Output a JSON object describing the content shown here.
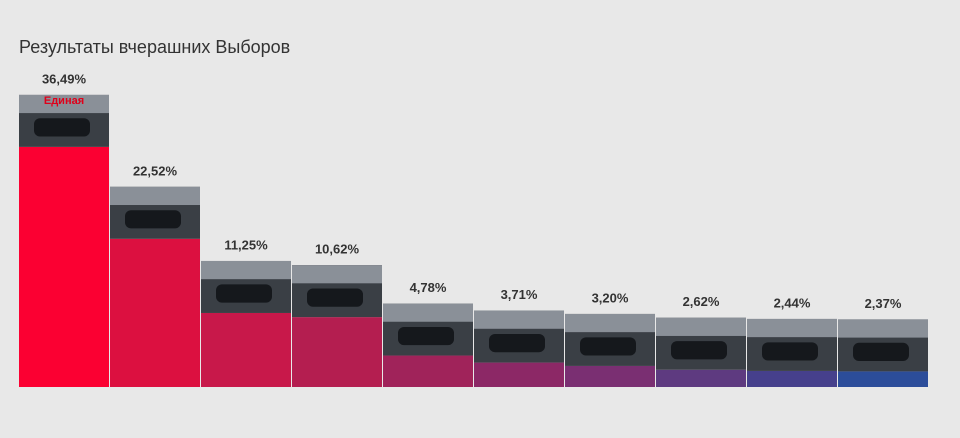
{
  "chart_data": {
    "type": "bar",
    "title": "Результаты вчерашних Выборов",
    "annotation": "Единая",
    "values": [
      36.49,
      22.52,
      11.25,
      10.62,
      4.78,
      3.71,
      3.2,
      2.62,
      2.44,
      2.37
    ],
    "value_labels": [
      "36,49%",
      "22,52%",
      "11,25%",
      "10,62%",
      "4,78%",
      "3,71%",
      "3,20%",
      "2,62%",
      "2,44%",
      "2,37%"
    ],
    "colors": [
      "#fb0032",
      "#dc1040",
      "#c8184a",
      "#b41e50",
      "#a0235a",
      "#8c2866",
      "#7a2f72",
      "#5e3a80",
      "#46408c",
      "#2c4d9a"
    ]
  }
}
